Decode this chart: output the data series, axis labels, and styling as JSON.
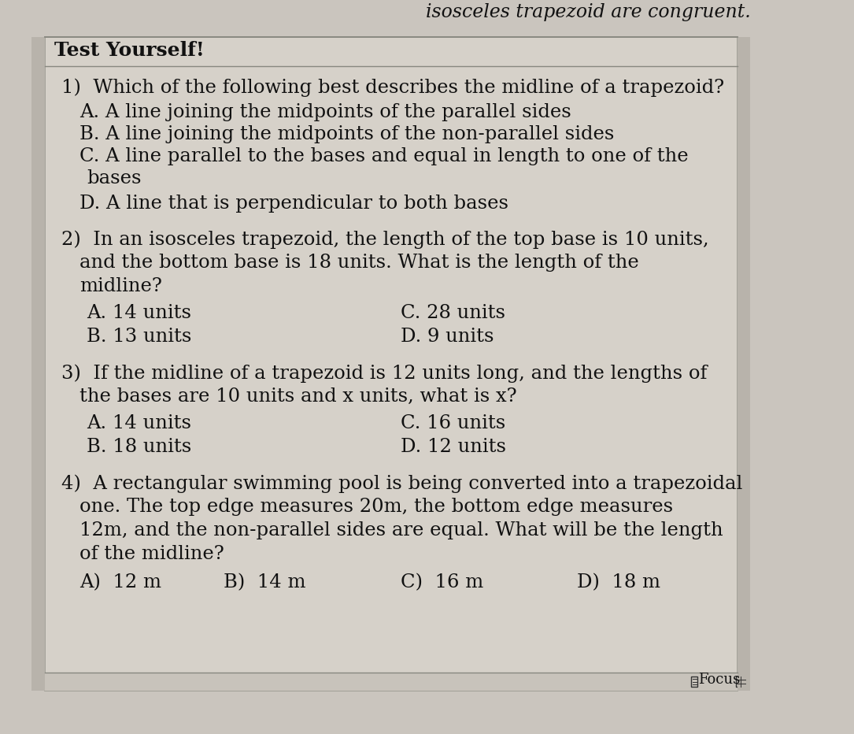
{
  "bg_color": "#cac5be",
  "box_color": "#d8d3cc",
  "text_color": "#111111",
  "header_text": "isosceles trapezoid are congruent.",
  "title": "Test Yourself!",
  "footer_text": "Focus",
  "font_size": 17.5,
  "title_font_size": 18,
  "header_font_size": 17
}
